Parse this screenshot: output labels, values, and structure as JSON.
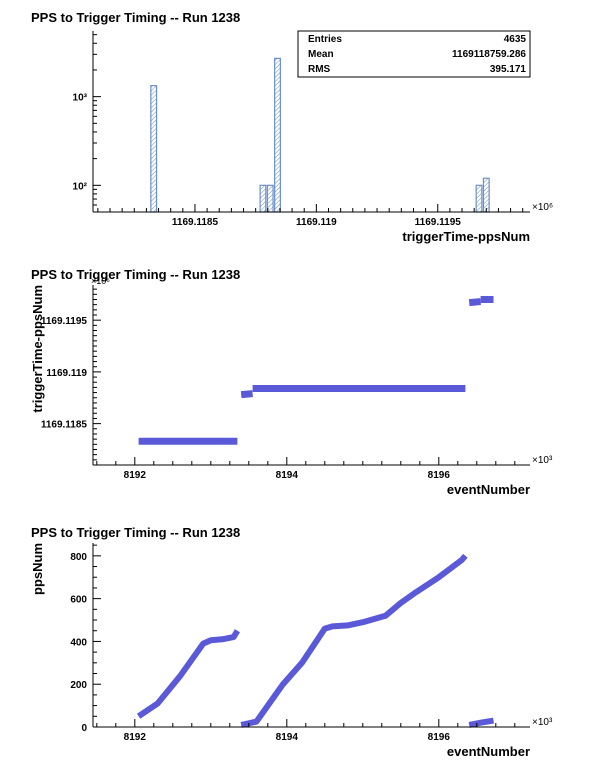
{
  "chart_data": [
    {
      "type": "bar",
      "title": "PPS to Trigger Timing -- Run 1238",
      "xlabel": "triggerTime-ppsNum",
      "ylabel": "",
      "log_y": true,
      "x_multiplier": "×10⁶",
      "xlim": [
        1169.11808,
        1169.11988
      ],
      "ylim": [
        50,
        5500
      ],
      "x_ticks": [
        1169.1185,
        1169.119,
        1169.1195
      ],
      "x_tick_labels": [
        "1169.1185",
        "1169.119",
        "1169.1195"
      ],
      "y_ticks": [
        100,
        1000
      ],
      "y_tick_labels": [
        "10²",
        "10³"
      ],
      "bin_width": 2.35e-05,
      "bars": [
        {
          "x": 1169.11833,
          "value": 1330
        },
        {
          "x": 1169.11878,
          "value": 100
        },
        {
          "x": 1169.11881,
          "value": 100
        },
        {
          "x": 1169.11884,
          "value": 2700
        },
        {
          "x": 1169.11967,
          "value": 100
        },
        {
          "x": 1169.1197,
          "value": 120
        }
      ],
      "stats": {
        "rows": [
          {
            "label": "Entries",
            "value": "4635"
          },
          {
            "label": "Mean",
            "value": "1169118759.286"
          },
          {
            "label": "RMS",
            "value": "395.171"
          }
        ]
      },
      "color": "#6a8fc8"
    },
    {
      "type": "scatter",
      "title": "PPS to Trigger Timing -- Run 1238",
      "xlabel": "eventNumber",
      "ylabel": "triggerTime-ppsNum",
      "x_multiplier": "×10³",
      "y_multiplier": "×10⁶",
      "xlim": [
        8191.45,
        8197.2
      ],
      "ylim": [
        1169.1181,
        1169.11984
      ],
      "x_ticks": [
        8192,
        8194,
        8196
      ],
      "x_tick_labels": [
        "8192",
        "8194",
        "8196"
      ],
      "y_ticks": [
        1169.1185,
        1169.119,
        1169.1195
      ],
      "y_tick_labels": [
        "1169.1185",
        "1169.119",
        "1169.1195"
      ],
      "segments": [
        {
          "x": [
            8192.05,
            8193.35
          ],
          "y": [
            1169.11833,
            1169.11833
          ]
        },
        {
          "x": [
            8193.4,
            8193.55
          ],
          "y": [
            1169.11878,
            1169.11879
          ]
        },
        {
          "x": [
            8193.55,
            8196.35
          ],
          "y": [
            1169.11884,
            1169.11884
          ]
        },
        {
          "x": [
            8196.4,
            8196.55
          ],
          "y": [
            1169.11967,
            1169.11968
          ]
        },
        {
          "x": [
            8196.55,
            8196.72
          ],
          "y": [
            1169.1197,
            1169.1197
          ]
        }
      ],
      "color": "#5a5ad8"
    },
    {
      "type": "scatter",
      "title": "PPS to Trigger Timing -- Run 1238",
      "xlabel": "eventNumber",
      "ylabel": "ppsNum",
      "x_multiplier": "×10³",
      "xlim": [
        8191.45,
        8197.2
      ],
      "ylim": [
        0,
        860
      ],
      "x_ticks": [
        8192,
        8194,
        8196
      ],
      "x_tick_labels": [
        "8192",
        "8194",
        "8196"
      ],
      "y_ticks": [
        0,
        200,
        400,
        600,
        800
      ],
      "y_tick_labels": [
        "0",
        "200",
        "400",
        "600",
        "800"
      ],
      "traces": [
        {
          "x": [
            8192.05,
            8192.3,
            8192.6,
            8192.9,
            8193.0,
            8193.15,
            8193.3,
            8193.35
          ],
          "y": [
            50,
            110,
            240,
            390,
            405,
            410,
            420,
            450
          ]
        },
        {
          "x": [
            8193.4,
            8193.6,
            8193.75,
            8193.95,
            8194.2,
            8194.5,
            8194.6,
            8194.8,
            8195.0,
            8195.3,
            8195.5,
            8195.7,
            8196.0,
            8196.3,
            8196.35
          ],
          "y": [
            10,
            25,
            100,
            200,
            300,
            460,
            470,
            475,
            490,
            520,
            580,
            630,
            700,
            780,
            800
          ]
        },
        {
          "x": [
            8196.4,
            8196.55,
            8196.72
          ],
          "y": [
            10,
            20,
            30
          ]
        }
      ],
      "color": "#5a5ad8"
    }
  ]
}
